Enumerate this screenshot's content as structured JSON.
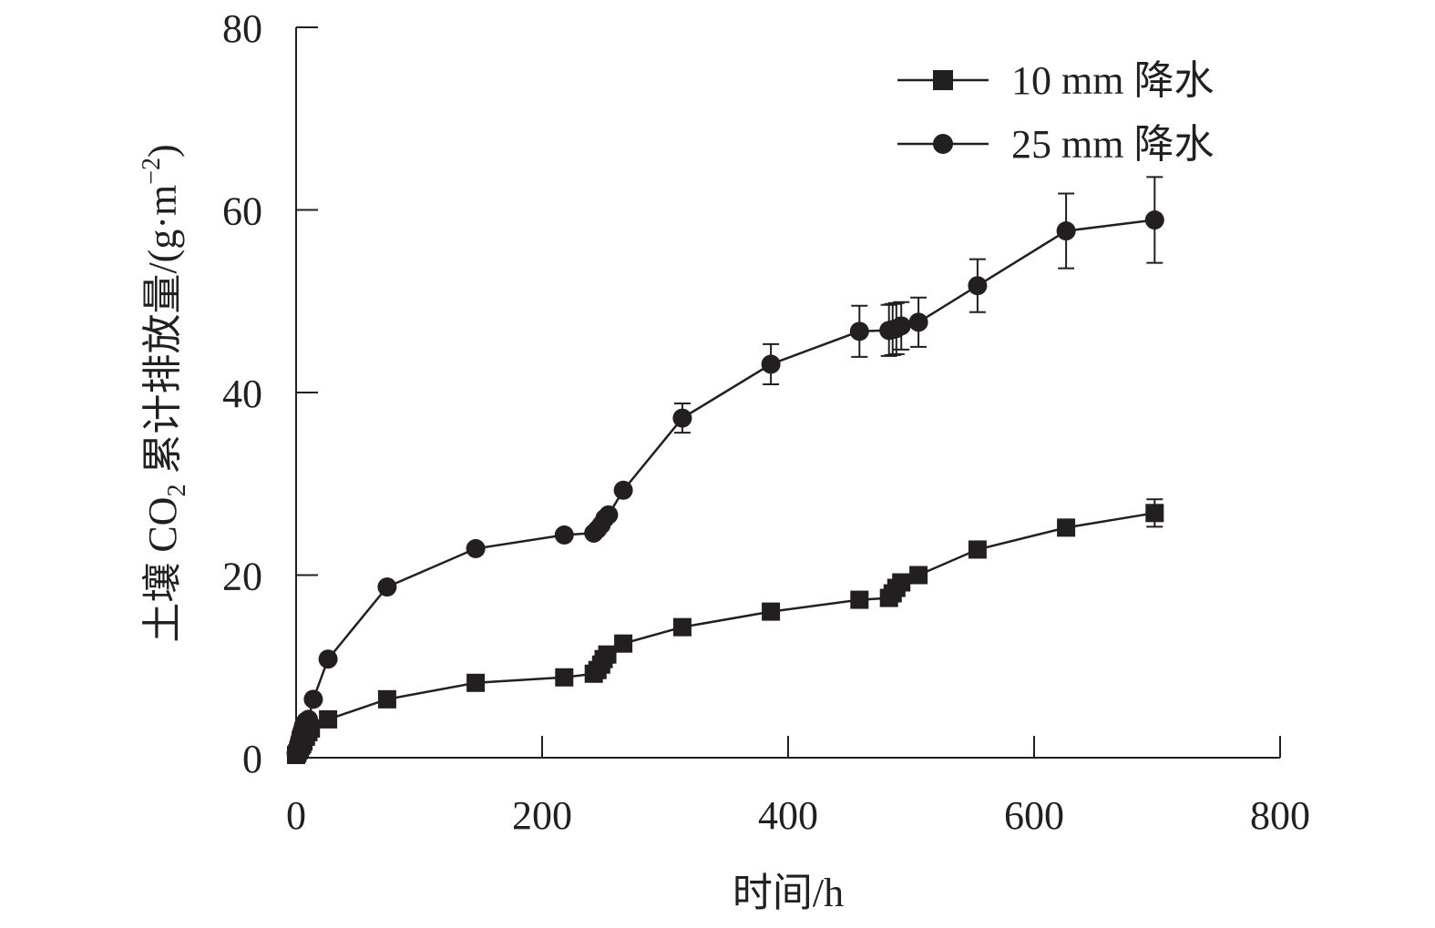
{
  "chart_data": {
    "type": "line",
    "xlabel": "时间/h",
    "ylabel_parts": [
      "土壤 CO",
      "2",
      " 累计排放量/(g·m",
      "−2",
      ")"
    ],
    "xlim": [
      0,
      800
    ],
    "ylim": [
      0,
      80
    ],
    "xticks": [
      0,
      200,
      400,
      600,
      800
    ],
    "yticks": [
      0,
      20,
      40,
      60,
      80
    ],
    "grid": false,
    "legend_position": "top-right",
    "series": [
      {
        "name": "10 mm 降水",
        "marker": "square",
        "x": [
          0,
          1,
          2,
          3,
          4,
          5,
          6,
          8,
          10,
          12,
          26,
          74,
          146,
          218,
          242,
          245,
          248,
          250,
          253,
          266,
          314,
          386,
          458,
          482,
          485,
          488,
          492,
          506,
          554,
          626,
          698
        ],
        "y": [
          0.3,
          0.5,
          0.8,
          1.0,
          1.3,
          1.5,
          1.8,
          2.3,
          2.8,
          3.2,
          4.2,
          6.4,
          8.2,
          8.8,
          9.2,
          9.6,
          10.2,
          10.8,
          11.3,
          12.5,
          14.3,
          16.0,
          17.3,
          17.5,
          18.0,
          18.6,
          19.2,
          20.0,
          22.8,
          25.2,
          26.8
        ],
        "err": [
          0,
          0,
          0,
          0,
          0,
          0,
          0,
          0,
          0,
          0,
          0,
          0,
          0,
          0,
          0,
          0,
          0,
          0,
          0,
          0,
          0,
          0,
          0,
          0,
          0,
          0,
          0,
          0,
          0,
          0.6,
          1.5
        ]
      },
      {
        "name": "25 mm 降水",
        "marker": "circle",
        "x": [
          0,
          1,
          2,
          3,
          4,
          5,
          6,
          8,
          10,
          14,
          26,
          74,
          146,
          218,
          242,
          245,
          248,
          251,
          254,
          266,
          314,
          386,
          458,
          482,
          485,
          488,
          492,
          506,
          554,
          626,
          698
        ],
        "y": [
          0.5,
          1.0,
          1.5,
          2.0,
          2.6,
          3.0,
          3.5,
          4.0,
          4.2,
          6.4,
          10.8,
          18.7,
          22.9,
          24.4,
          24.6,
          25.0,
          25.5,
          26.2,
          26.6,
          29.3,
          37.2,
          43.1,
          46.7,
          46.8,
          46.9,
          47.0,
          47.3,
          47.7,
          51.7,
          57.7,
          58.9
        ],
        "err": [
          0,
          0,
          0,
          0,
          0,
          0,
          0,
          0,
          0,
          0,
          0,
          0,
          0,
          0,
          0,
          0,
          0,
          0,
          0,
          0,
          1.6,
          2.2,
          2.8,
          2.8,
          2.8,
          2.8,
          2.6,
          2.7,
          2.9,
          4.1,
          4.7
        ]
      }
    ]
  }
}
